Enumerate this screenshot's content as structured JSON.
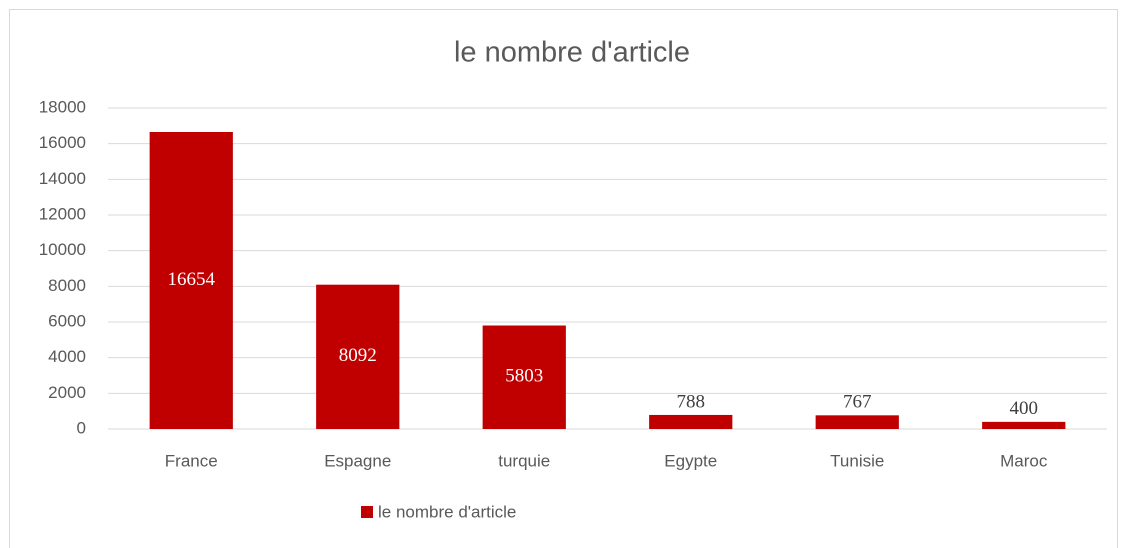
{
  "chart_data": {
    "type": "bar",
    "title": "le nombre d'article",
    "categories": [
      "France",
      "Espagne",
      "turquie",
      "Egypte",
      "Tunisie",
      "Maroc"
    ],
    "series": [
      {
        "name": "le nombre d'article",
        "color": "#c00000",
        "values": [
          16654,
          8092,
          5803,
          788,
          767,
          400
        ]
      }
    ],
    "ylim": [
      0,
      18000
    ],
    "yticks": [
      0,
      2000,
      4000,
      6000,
      8000,
      10000,
      12000,
      14000,
      16000,
      18000
    ],
    "grid": true,
    "legend": "bottom"
  }
}
